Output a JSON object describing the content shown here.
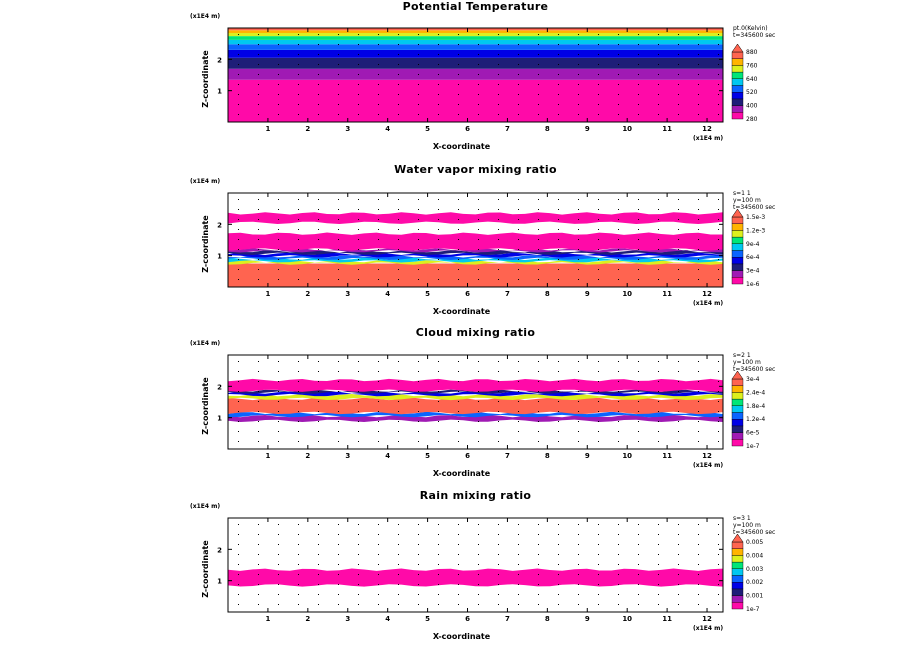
{
  "colors": {
    "palette_low_to_high": [
      "#ff0aa8",
      "#a01ab4",
      "#1e1e78",
      "#0000e6",
      "#0a64ff",
      "#00c8f0",
      "#00e678",
      "#dcf01e",
      "#ffb400",
      "#ff6450"
    ],
    "background": "#ffffff"
  },
  "chart_data": [
    {
      "type": "heatmap",
      "title": "Potential Temperature",
      "xlabel": "X-coordinate",
      "ylabel": "Z-coordinate",
      "x_unit_label": "(x1E4 m)",
      "z_unit_label": "(x1E4 m)",
      "xlim": [
        0,
        12.4
      ],
      "ylim": [
        0,
        3
      ],
      "xticks": [
        "1",
        "2",
        "3",
        "4",
        "5",
        "6",
        "7",
        "8",
        "9",
        "10",
        "11",
        "12"
      ],
      "yticks": [
        "1",
        "2"
      ],
      "info": [
        "pt.0(Kelvin)",
        "t=345600 sec"
      ],
      "legend_levels": [
        "280",
        "400",
        "520",
        "640",
        "760",
        "880"
      ],
      "bands": [
        {
          "z0": 0.0,
          "z1": 1.35,
          "level": 0
        },
        {
          "z0": 1.35,
          "z1": 1.7,
          "level": 1
        },
        {
          "z0": 1.7,
          "z1": 2.05,
          "level": 2
        },
        {
          "z0": 2.05,
          "z1": 2.3,
          "level": 3
        },
        {
          "z0": 2.3,
          "z1": 2.48,
          "level": 4
        },
        {
          "z0": 2.48,
          "z1": 2.62,
          "level": 5
        },
        {
          "z0": 2.62,
          "z1": 2.74,
          "level": 6
        },
        {
          "z0": 2.74,
          "z1": 2.84,
          "level": 7
        },
        {
          "z0": 2.84,
          "z1": 2.93,
          "level": 8
        },
        {
          "z0": 2.93,
          "z1": 3.0,
          "level": 9
        }
      ]
    },
    {
      "type": "heatmap",
      "title": "Water vapor mixing ratio",
      "xlabel": "X-coordinate",
      "ylabel": "Z-coordinate",
      "x_unit_label": "(x1E4 m)",
      "z_unit_label": "(x1E4 m)",
      "xlim": [
        0,
        12.4
      ],
      "ylim": [
        0,
        3
      ],
      "xticks": [
        "1",
        "2",
        "3",
        "4",
        "5",
        "6",
        "7",
        "8",
        "9",
        "10",
        "11",
        "12"
      ],
      "yticks": [
        "1",
        "2"
      ],
      "info": [
        "s=1 1",
        "y=100 m",
        "t=345600 sec"
      ],
      "legend_levels": [
        "1e-6",
        "3e-4",
        "6e-4",
        "9e-4",
        "1.2e-3",
        "1.5e-3"
      ],
      "bands": [
        {
          "z0": 0.0,
          "z1": 0.75,
          "level": 9
        },
        {
          "z0": 0.75,
          "z1": 0.82,
          "level": 7
        },
        {
          "z0": 0.82,
          "z1": 0.9,
          "level": 5
        },
        {
          "z0": 0.9,
          "z1": 0.98,
          "level": 4
        },
        {
          "z0": 0.98,
          "z1": 1.06,
          "level": 3
        },
        {
          "z0": 1.06,
          "z1": 1.14,
          "level": 2
        },
        {
          "z0": 1.14,
          "z1": 1.2,
          "level": 1
        },
        {
          "z0": 1.2,
          "z1": 1.7,
          "level": 0
        },
        {
          "z0": 2.05,
          "z1": 2.35,
          "level": 0
        }
      ]
    },
    {
      "type": "heatmap",
      "title": "Cloud mixing ratio",
      "xlabel": "X-coordinate",
      "ylabel": "Z-coordinate",
      "x_unit_label": "(x1E4 m)",
      "z_unit_label": "(x1E4 m)",
      "xlim": [
        0,
        12.4
      ],
      "ylim": [
        0,
        3
      ],
      "xticks": [
        "1",
        "2",
        "3",
        "4",
        "5",
        "6",
        "7",
        "8",
        "9",
        "10",
        "11",
        "12"
      ],
      "yticks": [
        "1",
        "2"
      ],
      "info": [
        "s=2 1",
        "y=100 m",
        "t=345600 sec"
      ],
      "legend_levels": [
        "1e-7",
        "6e-5",
        "1.2e-4",
        "1.8e-4",
        "2.4e-4",
        "3e-4"
      ],
      "bands": [
        {
          "z0": 0.9,
          "z1": 1.05,
          "level": 1
        },
        {
          "z0": 1.05,
          "z1": 1.15,
          "level": 4
        },
        {
          "z0": 1.15,
          "z1": 1.6,
          "level": 9
        },
        {
          "z0": 1.6,
          "z1": 1.72,
          "level": 7
        },
        {
          "z0": 1.72,
          "z1": 1.8,
          "level": 3
        },
        {
          "z0": 1.8,
          "z1": 1.86,
          "level": 2
        },
        {
          "z0": 1.86,
          "z1": 2.2,
          "level": 0
        }
      ]
    },
    {
      "type": "heatmap",
      "title": "Rain mixing ratio",
      "xlabel": "X-coordinate",
      "ylabel": "Z-coordinate",
      "x_unit_label": "(x1E4 m)",
      "z_unit_label": "(x1E4 m)",
      "xlim": [
        0,
        12.4
      ],
      "ylim": [
        0,
        3
      ],
      "xticks": [
        "1",
        "2",
        "3",
        "4",
        "5",
        "6",
        "7",
        "8",
        "9",
        "10",
        "11",
        "12"
      ],
      "yticks": [
        "1",
        "2"
      ],
      "info": [
        "s=3 1",
        "y=100 m",
        "t=345600 sec"
      ],
      "legend_levels": [
        "1e-7",
        "0.001",
        "0.002",
        "0.003",
        "0.004",
        "0.005"
      ],
      "bands": [
        {
          "z0": 0.85,
          "z1": 1.35,
          "level": 0
        }
      ]
    }
  ]
}
